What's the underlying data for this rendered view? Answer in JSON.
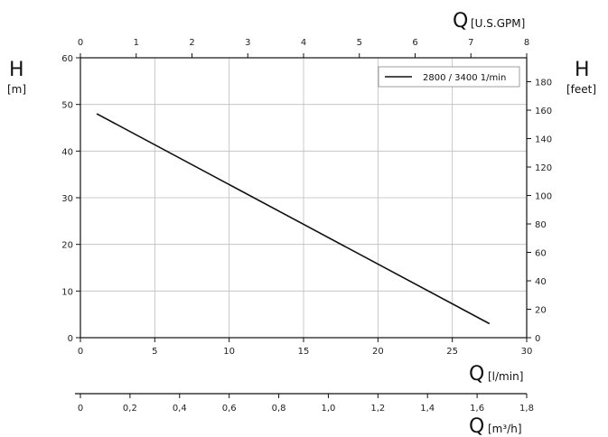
{
  "chart_data": {
    "type": "line",
    "grid": true,
    "legend_placement": "top-right",
    "series": [
      {
        "name": "2800 / 3400 1/min",
        "x": [
          1.1,
          27.5
        ],
        "y": [
          48,
          3
        ]
      }
    ],
    "x_axis": {
      "symbol": "Q",
      "unit": "[l/min]",
      "range": [
        0,
        30
      ],
      "ticks": [
        "0",
        "5",
        "10",
        "15",
        "20",
        "25",
        "30"
      ]
    },
    "x_top_axis": {
      "symbol": "Q",
      "unit": "[U.S.GPM]",
      "range": [
        0,
        8
      ],
      "ticks": [
        "0",
        "1",
        "2",
        "3",
        "4",
        "5",
        "6",
        "7",
        "8"
      ]
    },
    "x_bottom2_axis": {
      "symbol": "Q",
      "unit": "[m³/h]",
      "range": [
        0,
        1.8
      ],
      "ticks": [
        "0",
        "0,2",
        "0,4",
        "0,6",
        "0,8",
        "1,0",
        "1,2",
        "1,4",
        "1,6",
        "1,8"
      ]
    },
    "y_axis": {
      "symbol": "H",
      "unit": "[m]",
      "range": [
        0,
        60
      ],
      "ticks": [
        "0",
        "10",
        "20",
        "30",
        "40",
        "50",
        "60"
      ]
    },
    "y_right_axis": {
      "symbol": "H",
      "unit": "[feet]",
      "range": [
        0,
        196.85
      ],
      "ticks": [
        "0",
        "20",
        "40",
        "60",
        "80",
        "100",
        "120",
        "140",
        "160",
        "180"
      ]
    }
  }
}
